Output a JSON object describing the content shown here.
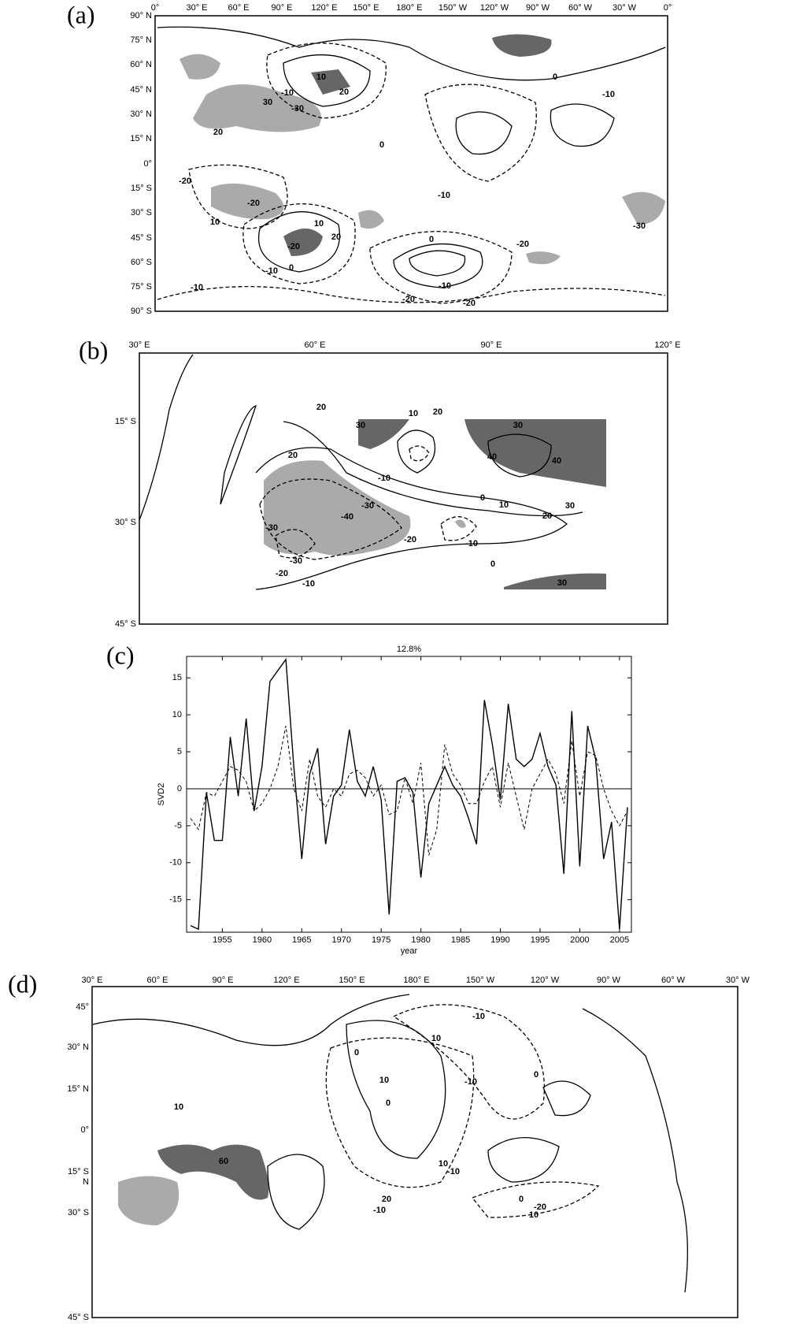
{
  "chart_data": [
    {
      "type": "map",
      "panel": "(a)",
      "lon_labels": [
        "0°",
        "30° E",
        "60° E",
        "90° E",
        "120° E",
        "150° E",
        "180° E",
        "150° W",
        "120° W",
        "90° W",
        "60° W",
        "30° W",
        "0°"
      ],
      "lat_labels": [
        "90° N",
        "75° N",
        "60° N",
        "45° N",
        "30° N",
        "15° N",
        "0°",
        "15° S",
        "30° S",
        "45° S",
        "60° S",
        "75° S",
        "90° S"
      ],
      "contour_labels": [
        -10,
        20,
        10,
        30,
        -30,
        20,
        -20,
        -20,
        10,
        20,
        -20,
        10,
        -10,
        0,
        0,
        -20,
        -10,
        -20,
        -20,
        -10,
        0,
        -10,
        -10,
        0,
        -30
      ]
    },
    {
      "type": "map",
      "panel": "(b)",
      "lon_labels": [
        "30° E",
        "60° E",
        "90° E",
        "120° E"
      ],
      "lat_labels": [
        "15° S",
        "30° S",
        "45° S"
      ],
      "contour_labels": [
        20,
        30,
        10,
        20,
        30,
        40,
        40,
        20,
        -40,
        -30,
        -10,
        10,
        0,
        -10,
        0,
        30,
        20,
        -20,
        -30,
        -30,
        -20,
        -10,
        30
      ]
    },
    {
      "type": "line",
      "panel": "(c)",
      "title": "12.8%",
      "y_label": "SVD2",
      "x_label": "year",
      "x": [
        1951,
        1952,
        1953,
        1954,
        1955,
        1956,
        1957,
        1958,
        1959,
        1960,
        1961,
        1962,
        1963,
        1964,
        1965,
        1966,
        1967,
        1968,
        1969,
        1970,
        1971,
        1972,
        1973,
        1974,
        1975,
        1976,
        1977,
        1978,
        1979,
        1980,
        1981,
        1982,
        1983,
        1984,
        1985,
        1986,
        1987,
        1988,
        1989,
        1990,
        1991,
        1992,
        1993,
        1994,
        1995,
        1996,
        1997,
        1998,
        1999,
        2000,
        2001,
        2002,
        2003,
        2004,
        2005,
        2006
      ],
      "xlim": [
        1950.5,
        2006.5
      ],
      "xticks": [
        1955,
        1960,
        1965,
        1970,
        1975,
        1980,
        1985,
        1990,
        1995,
        2000,
        2005
      ],
      "ylim": [
        -19.4,
        17.9
      ],
      "yticks": [
        -15,
        -10,
        -5,
        0,
        5,
        10,
        15
      ],
      "series": [
        {
          "color": "#000000",
          "line_style": "solid",
          "values": [
            -18.5,
            -19,
            -0.5,
            -7,
            -7,
            7,
            -1,
            9.5,
            -3,
            3,
            14.5,
            16,
            17.5,
            3,
            -9.5,
            2,
            5.5,
            -7.5,
            -1,
            0.5,
            8,
            1,
            -1,
            3,
            -1.5,
            -17,
            1,
            1.5,
            -0.5,
            -12,
            -2,
            0.5,
            3,
            0.5,
            -1,
            -4,
            -7.5,
            12,
            6,
            -1.5,
            11.5,
            4,
            3,
            4,
            7.5,
            3,
            0.5,
            -11.5,
            10.5,
            -10.5,
            8.5,
            4,
            -9.5,
            -4.5,
            -19,
            -2.5
          ]
        },
        {
          "color": "#000000",
          "line_style": "dashed",
          "values": [
            -4,
            -5.5,
            -0.5,
            -1,
            1,
            3,
            2.5,
            1,
            -3,
            -2,
            0,
            3,
            8.5,
            0,
            -3,
            4,
            -1,
            -2.5,
            0,
            -1,
            2,
            2.5,
            1.5,
            -1,
            0.5,
            -3.5,
            -3,
            1.5,
            -2,
            3.5,
            -9,
            -5.5,
            6,
            2,
            0.5,
            -2,
            -2,
            1,
            3,
            -2.5,
            3.5,
            -1,
            -5.5,
            0,
            2,
            4,
            2,
            -2,
            6.5,
            -1,
            5,
            4.5,
            0,
            -3,
            -5,
            -3
          ]
        }
      ]
    },
    {
      "type": "map",
      "panel": "(d)",
      "lon_labels": [
        "30° E",
        "60° E",
        "90° E",
        "120° E",
        "150° E",
        "180° E",
        "150° W",
        "120° W",
        "90° W",
        "60° W",
        "30° W"
      ],
      "lat_labels": [
        "45°",
        "30° N",
        "15° N",
        "0°",
        "15° S",
        "N",
        "30° S",
        "45° S"
      ],
      "contour_labels": [
        10,
        -10,
        -10,
        0,
        10,
        0,
        0,
        10,
        -10,
        -20,
        10,
        0,
        10,
        60,
        -10,
        20
      ]
    }
  ]
}
